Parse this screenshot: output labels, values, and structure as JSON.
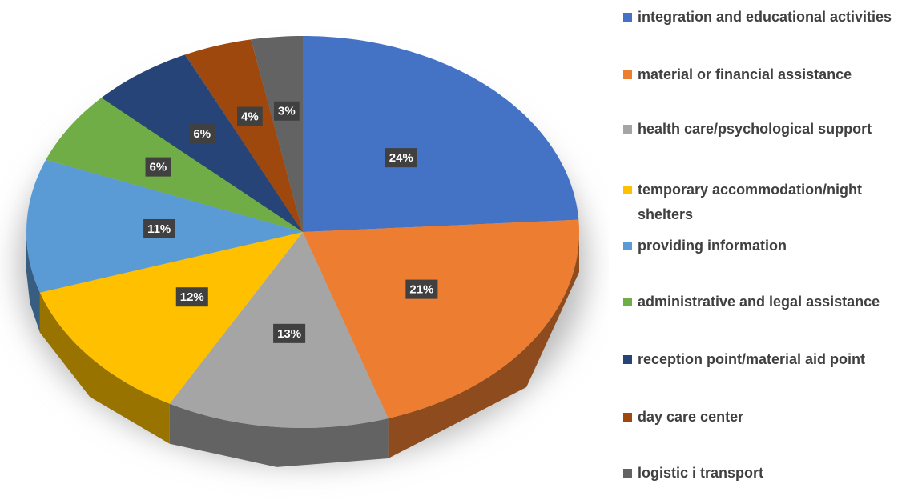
{
  "chart_data": {
    "type": "pie",
    "categories": [
      "integration and educational activities",
      "material or financial assistance",
      "health care/psychological support",
      "temporary accommodation/night shelters",
      "providing information",
      "administrative and legal assistance",
      "reception point/material aid point",
      "day care center",
      "logistic i transport"
    ],
    "values": [
      24,
      21,
      13,
      12,
      11,
      6,
      6,
      4,
      3
    ],
    "value_labels": [
      "24%",
      "21%",
      "13%",
      "12%",
      "11%",
      "6%",
      "6%",
      "4%",
      "3%"
    ],
    "colors": [
      "#4472c4",
      "#ed7d31",
      "#a5a5a5",
      "#ffc000",
      "#5b9bd5",
      "#70ad47",
      "#264478",
      "#9e480e",
      "#636363"
    ],
    "legend": "right"
  }
}
